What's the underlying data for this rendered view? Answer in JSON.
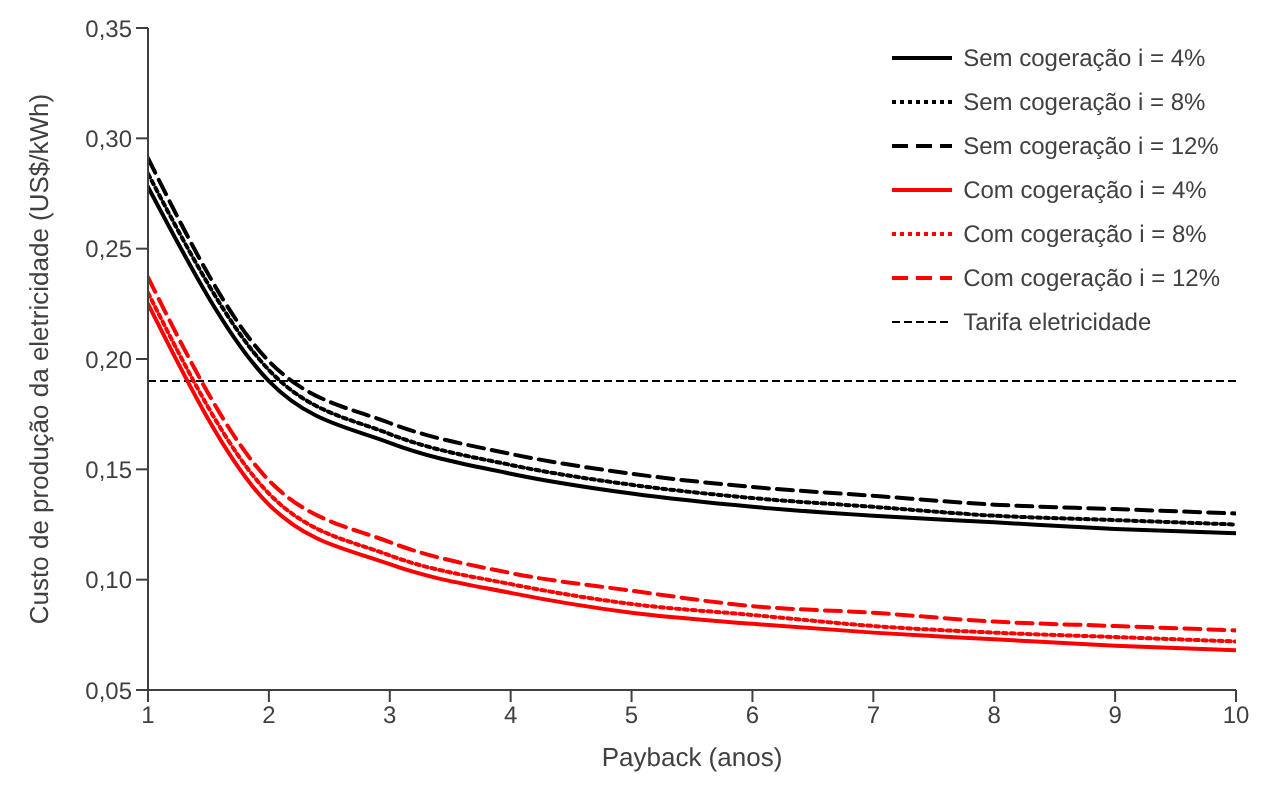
{
  "chart_data": {
    "type": "line",
    "xlabel": "Payback (anos)",
    "ylabel": "Custo de produção da eletricidade (US$/kWh)",
    "x": [
      1,
      2,
      3,
      4,
      5,
      6,
      7,
      8,
      9,
      10
    ],
    "xlim": [
      1,
      10
    ],
    "xticks": [
      1,
      2,
      3,
      4,
      5,
      6,
      7,
      8,
      9,
      10
    ],
    "ylim": [
      0.05,
      0.35
    ],
    "yticks": [
      {
        "value": 0.05,
        "label": "0,05"
      },
      {
        "value": 0.1,
        "label": "0,10"
      },
      {
        "value": 0.15,
        "label": "0,15"
      },
      {
        "value": 0.2,
        "label": "0,20"
      },
      {
        "value": 0.25,
        "label": "0,25"
      },
      {
        "value": 0.3,
        "label": "0,30"
      },
      {
        "value": 0.35,
        "label": "0,35"
      }
    ],
    "grid": false,
    "legend": "top right",
    "marker": "none",
    "series": [
      {
        "name": "Sem cogeração i = 4%",
        "color": "#000000",
        "line_style": "solid",
        "values": [
          0.278,
          0.19,
          0.162,
          0.148,
          0.139,
          0.133,
          0.129,
          0.126,
          0.123,
          0.121
        ]
      },
      {
        "name": "Sem cogeração i = 8%",
        "color": "#000000",
        "line_style": "dotted",
        "values": [
          0.284,
          0.195,
          0.166,
          0.152,
          0.143,
          0.137,
          0.133,
          0.129,
          0.127,
          0.125
        ]
      },
      {
        "name": "Sem cogeração i = 12%",
        "color": "#000000",
        "line_style": "dashed",
        "values": [
          0.291,
          0.199,
          0.171,
          0.157,
          0.148,
          0.142,
          0.138,
          0.134,
          0.132,
          0.13
        ]
      },
      {
        "name": "Com cogeração i = 4%",
        "color": "#ff0000",
        "line_style": "solid",
        "values": [
          0.225,
          0.134,
          0.107,
          0.094,
          0.085,
          0.08,
          0.076,
          0.073,
          0.07,
          0.068
        ]
      },
      {
        "name": "Com cogeração i = 8%",
        "color": "#ff0000",
        "line_style": "dotted",
        "values": [
          0.23,
          0.139,
          0.111,
          0.098,
          0.089,
          0.084,
          0.079,
          0.076,
          0.074,
          0.072
        ]
      },
      {
        "name": "Com cogeração i = 12%",
        "color": "#ff0000",
        "line_style": "dashed",
        "values": [
          0.237,
          0.145,
          0.117,
          0.103,
          0.095,
          0.088,
          0.085,
          0.081,
          0.079,
          0.077
        ]
      }
    ],
    "ref_lines": [
      {
        "axis": "y",
        "value": 0.19,
        "label": "Tarifa eletricidade",
        "color": "#000000",
        "line_style": "dashed"
      }
    ]
  }
}
